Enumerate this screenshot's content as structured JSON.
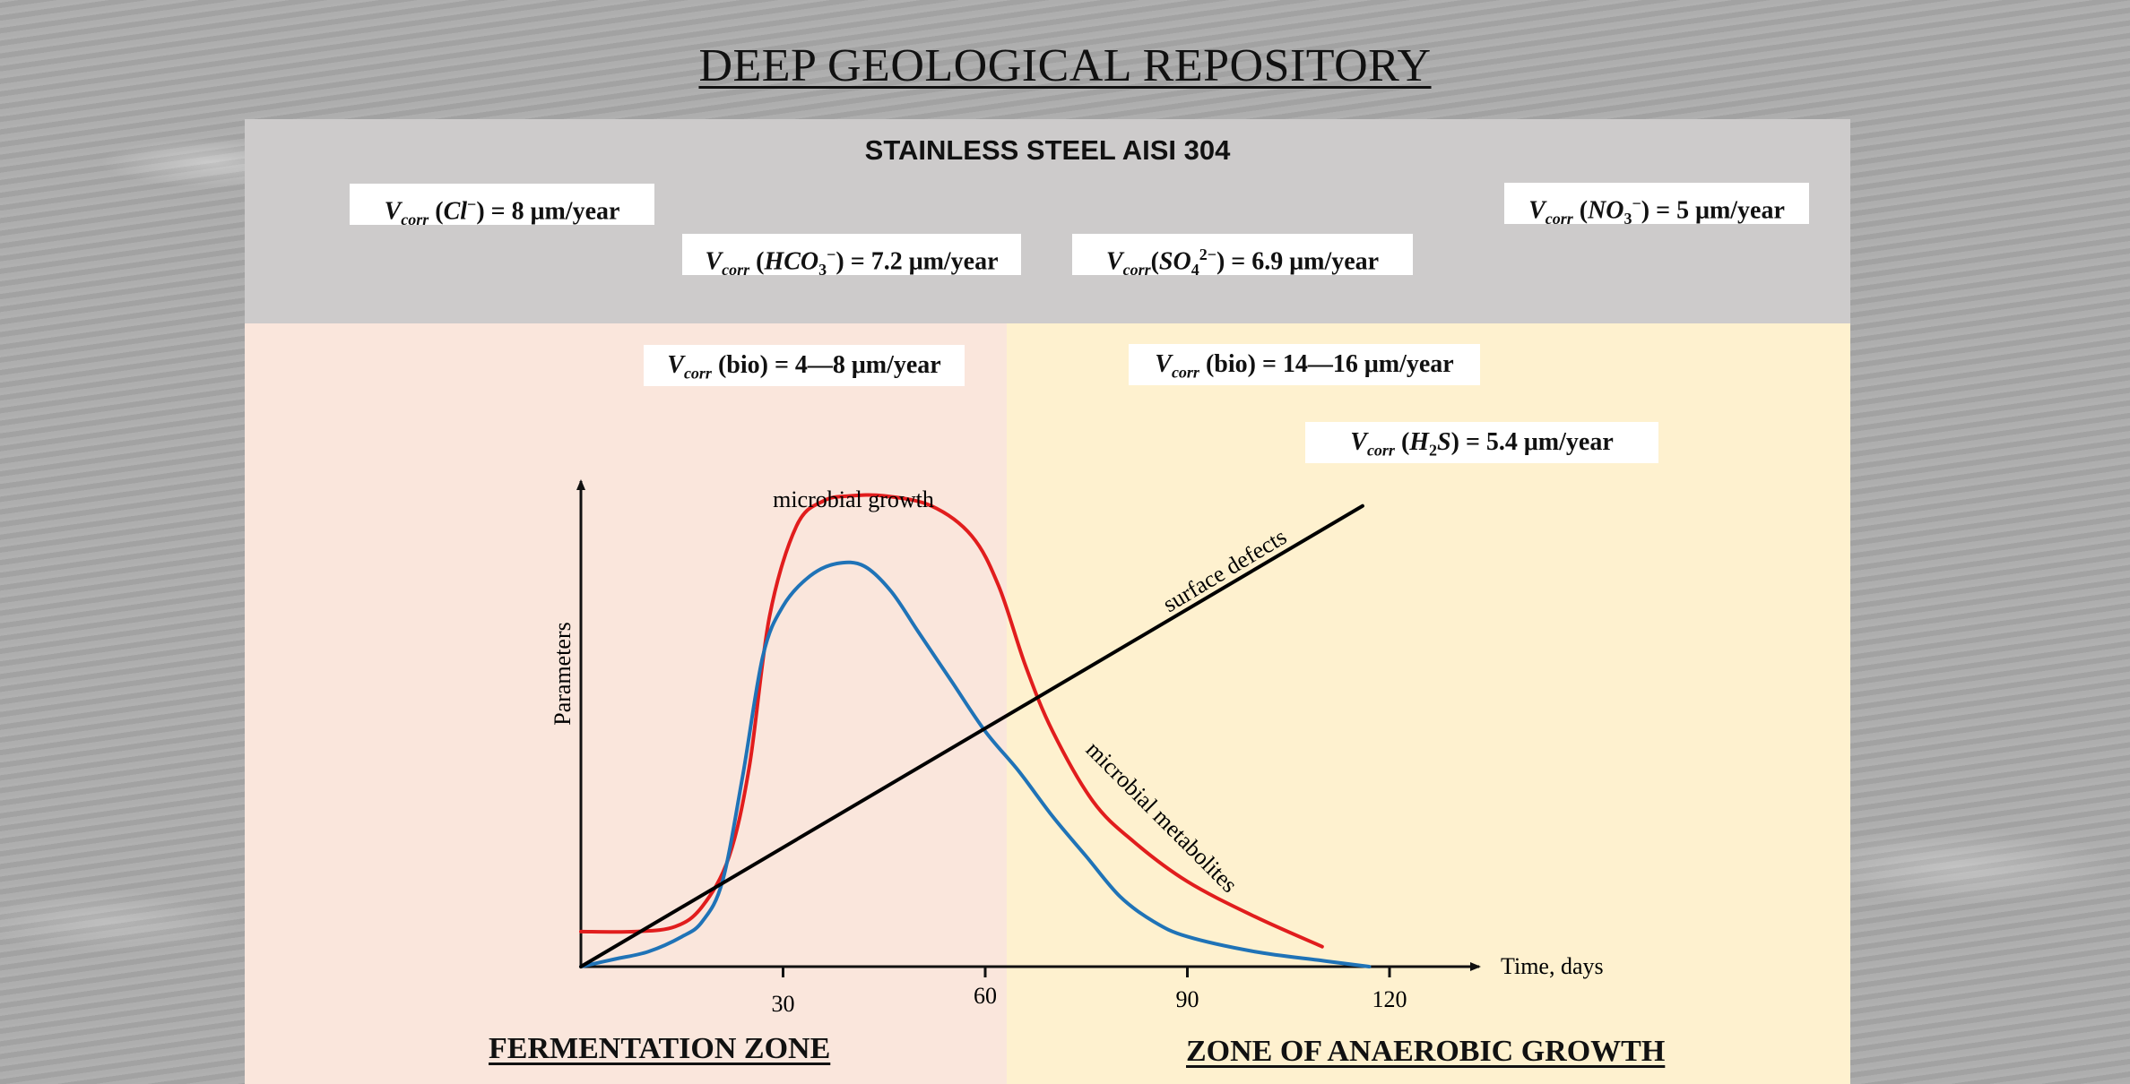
{
  "title": "DEEP GEOLOGICAL REPOSITORY",
  "material": "STAINLESS STEEL AISI 304",
  "rates": {
    "cl": {
      "label": "V",
      "sub": "corr",
      "species": "Cl",
      "sp_sub": "",
      "sp_sup": "−",
      "value": "= 8 μm/year"
    },
    "no3": {
      "label": "V",
      "sub": "corr",
      "species": "NO",
      "sp_sub": "3",
      "sp_sup": "−",
      "value": "= 5 μm/year"
    },
    "hco3": {
      "label": "V",
      "sub": "corr",
      "species": "HCO",
      "sp_sub": "3",
      "sp_sup": "−",
      "value": "= 7.2 μm/year"
    },
    "so4": {
      "label": "V",
      "sub": "corr",
      "species": "SO",
      "sp_sub": "4",
      "sp_sup": "2−",
      "value": "= 6.9 μm/year"
    },
    "bio_ferm": {
      "label": "V",
      "sub": "corr",
      "text": "(bio) = 4—8 μm/year"
    },
    "bio_anaer": {
      "label": "V",
      "sub": "corr",
      "text": "(bio) = 14—16 μm/year"
    },
    "h2s": {
      "label": "V",
      "sub": "corr",
      "species": "H",
      "sp_sub": "2",
      "species2": "S",
      "value": "= 5.4 μm/year"
    }
  },
  "zones": {
    "fermentation": "FERMENTATION ZONE",
    "anaerobic": "ZONE OF ANAEROBIC GROWTH"
  },
  "colors": {
    "steel_band": "#cdcbcb",
    "fermentation_zone": "#fae6dc",
    "anaerobic_zone": "#fef1cf",
    "microbial_growth": "#e11d1d",
    "microbial_metabolites": "#1f73b7",
    "surface_defects": "#000000"
  },
  "chart_data": {
    "type": "line",
    "xlabel": "Time, days",
    "ylabel": "Parameters",
    "x_ticks": [
      30,
      60,
      90,
      120
    ],
    "xlim": [
      0,
      135
    ],
    "ylim": [
      0,
      100
    ],
    "series": [
      {
        "name": "microbial growth",
        "x": [
          0,
          8,
          14,
          18,
          22,
          25,
          28,
          32,
          36,
          40,
          45,
          52,
          58,
          62,
          66,
          70,
          76,
          82,
          90,
          100,
          110
        ],
        "y": [
          7,
          7,
          8,
          12,
          22,
          40,
          70,
          88,
          93,
          94,
          94,
          92,
          86,
          76,
          60,
          47,
          33,
          25,
          17,
          10,
          4
        ]
      },
      {
        "name": "microbial metabolites",
        "x": [
          0,
          5,
          10,
          15,
          18,
          21,
          24,
          27,
          30,
          34,
          38,
          42,
          46,
          50,
          55,
          60,
          65,
          70,
          75,
          80,
          85,
          90,
          100,
          110,
          117
        ],
        "y": [
          0,
          1.5,
          3,
          6,
          9,
          17,
          38,
          62,
          72,
          78,
          80.5,
          80,
          75,
          67,
          57,
          47,
          39,
          30,
          22,
          14,
          9,
          6,
          3,
          1.2,
          0
        ]
      },
      {
        "name": "surface defects",
        "x": [
          0,
          116
        ],
        "y": [
          0,
          92
        ]
      }
    ]
  }
}
